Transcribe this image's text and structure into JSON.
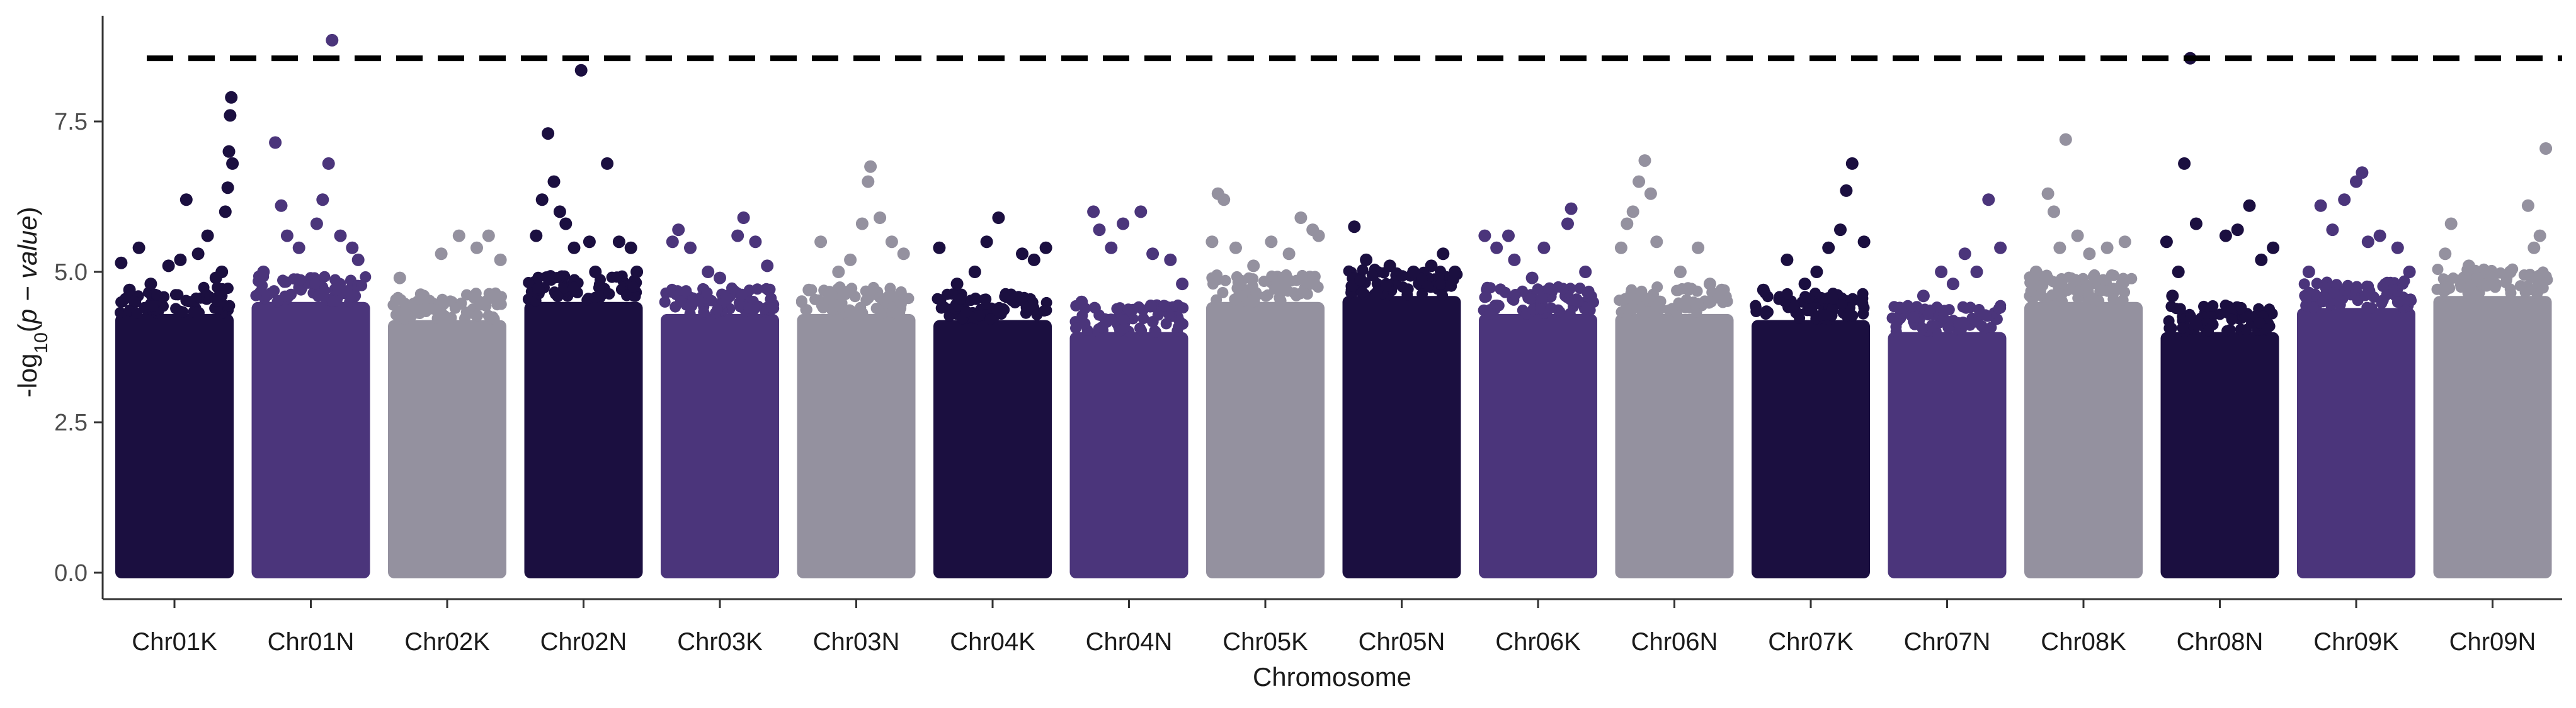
{
  "chart_data": {
    "type": "scatter",
    "subtype": "manhattan",
    "title": "",
    "xlabel": "Chromosome",
    "ylabel": {
      "prefix": "-log",
      "sub": "10",
      "open": "(",
      "italic": "p − value",
      "close": ")"
    },
    "ylim": [
      0,
      9.0
    ],
    "yticks": [
      0.0,
      2.5,
      5.0,
      7.5
    ],
    "ytick_labels": [
      "0.0",
      "2.5",
      "5.0",
      "7.5"
    ],
    "threshold": 8.55,
    "grid": false,
    "legend": "none",
    "palette": [
      "#1b0f40",
      "#4b357b",
      "#94919f"
    ],
    "categories": [
      "Chr01K",
      "Chr01N",
      "Chr02K",
      "Chr02N",
      "Chr03K",
      "Chr03N",
      "Chr04K",
      "Chr04N",
      "Chr05K",
      "Chr05N",
      "Chr06K",
      "Chr06N",
      "Chr07K",
      "Chr07N",
      "Chr08K",
      "Chr08N",
      "Chr09K",
      "Chr09N"
    ],
    "series": [
      {
        "category": "Chr01K",
        "color": "#1b0f40",
        "body_max": 4.3,
        "peaks": [
          [
            0.05,
            5.15
          ],
          [
            0.12,
            4.7
          ],
          [
            0.2,
            5.4
          ],
          [
            0.3,
            4.8
          ],
          [
            0.45,
            5.1
          ],
          [
            0.55,
            5.2
          ],
          [
            0.6,
            6.2
          ],
          [
            0.7,
            5.3
          ],
          [
            0.78,
            5.6
          ],
          [
            0.85,
            4.9
          ],
          [
            0.9,
            5.0
          ],
          [
            0.93,
            6.0
          ],
          [
            0.95,
            6.4
          ],
          [
            0.96,
            7.0
          ],
          [
            0.97,
            7.6
          ],
          [
            0.98,
            7.9
          ],
          [
            0.99,
            6.8
          ]
        ]
      },
      {
        "category": "Chr01N",
        "color": "#4b357b",
        "body_max": 4.5,
        "peaks": [
          [
            0.1,
            5.0
          ],
          [
            0.2,
            7.15
          ],
          [
            0.25,
            6.1
          ],
          [
            0.3,
            5.6
          ],
          [
            0.4,
            5.4
          ],
          [
            0.55,
            5.8
          ],
          [
            0.6,
            6.2
          ],
          [
            0.65,
            6.8
          ],
          [
            0.68,
            8.85
          ],
          [
            0.75,
            5.6
          ],
          [
            0.85,
            5.4
          ],
          [
            0.9,
            5.2
          ]
        ]
      },
      {
        "category": "Chr02K",
        "color": "#94919f",
        "body_max": 4.2,
        "peaks": [
          [
            0.1,
            4.9
          ],
          [
            0.3,
            4.6
          ],
          [
            0.45,
            5.3
          ],
          [
            0.6,
            5.6
          ],
          [
            0.75,
            5.4
          ],
          [
            0.85,
            5.6
          ],
          [
            0.95,
            5.2
          ]
        ]
      },
      {
        "category": "Chr02N",
        "color": "#1b0f40",
        "body_max": 4.5,
        "peaks": [
          [
            0.1,
            5.6
          ],
          [
            0.15,
            6.2
          ],
          [
            0.2,
            7.3
          ],
          [
            0.25,
            6.5
          ],
          [
            0.3,
            6.0
          ],
          [
            0.35,
            5.8
          ],
          [
            0.42,
            5.4
          ],
          [
            0.48,
            8.35
          ],
          [
            0.55,
            5.5
          ],
          [
            0.6,
            5.0
          ],
          [
            0.7,
            6.8
          ],
          [
            0.8,
            5.5
          ],
          [
            0.9,
            5.4
          ],
          [
            0.95,
            5.0
          ]
        ]
      },
      {
        "category": "Chr03K",
        "color": "#4b357b",
        "body_max": 4.3,
        "peaks": [
          [
            0.1,
            5.5
          ],
          [
            0.15,
            5.7
          ],
          [
            0.25,
            5.4
          ],
          [
            0.4,
            5.0
          ],
          [
            0.5,
            4.9
          ],
          [
            0.65,
            5.6
          ],
          [
            0.7,
            5.9
          ],
          [
            0.8,
            5.5
          ],
          [
            0.9,
            5.1
          ]
        ]
      },
      {
        "category": "Chr03N",
        "color": "#94919f",
        "body_max": 4.3,
        "peaks": [
          [
            0.1,
            4.7
          ],
          [
            0.2,
            5.5
          ],
          [
            0.35,
            5.0
          ],
          [
            0.45,
            5.2
          ],
          [
            0.55,
            5.8
          ],
          [
            0.6,
            6.5
          ],
          [
            0.62,
            6.75
          ],
          [
            0.7,
            5.9
          ],
          [
            0.8,
            5.5
          ],
          [
            0.9,
            5.3
          ]
        ]
      },
      {
        "category": "Chr04K",
        "color": "#1b0f40",
        "body_max": 4.2,
        "peaks": [
          [
            0.05,
            5.4
          ],
          [
            0.2,
            4.8
          ],
          [
            0.35,
            5.0
          ],
          [
            0.45,
            5.5
          ],
          [
            0.55,
            5.9
          ],
          [
            0.75,
            5.3
          ],
          [
            0.85,
            5.2
          ],
          [
            0.95,
            5.4
          ]
        ]
      },
      {
        "category": "Chr04N",
        "color": "#4b357b",
        "body_max": 4.0,
        "peaks": [
          [
            0.1,
            4.5
          ],
          [
            0.2,
            6.0
          ],
          [
            0.25,
            5.7
          ],
          [
            0.35,
            5.4
          ],
          [
            0.45,
            5.8
          ],
          [
            0.6,
            6.0
          ],
          [
            0.7,
            5.3
          ],
          [
            0.85,
            5.2
          ],
          [
            0.95,
            4.8
          ]
        ]
      },
      {
        "category": "Chr05K",
        "color": "#94919f",
        "body_max": 4.5,
        "peaks": [
          [
            0.05,
            5.5
          ],
          [
            0.1,
            6.3
          ],
          [
            0.15,
            6.2
          ],
          [
            0.25,
            5.4
          ],
          [
            0.4,
            5.1
          ],
          [
            0.55,
            5.5
          ],
          [
            0.7,
            5.3
          ],
          [
            0.8,
            5.9
          ],
          [
            0.9,
            5.7
          ],
          [
            0.95,
            5.6
          ]
        ]
      },
      {
        "category": "Chr05N",
        "color": "#1b0f40",
        "body_max": 4.6,
        "peaks": [
          [
            0.1,
            5.75
          ],
          [
            0.2,
            5.2
          ],
          [
            0.4,
            5.1
          ],
          [
            0.6,
            5.0
          ],
          [
            0.75,
            5.1
          ],
          [
            0.85,
            5.3
          ],
          [
            0.95,
            5.0
          ]
        ]
      },
      {
        "category": "Chr06K",
        "color": "#4b357b",
        "body_max": 4.3,
        "peaks": [
          [
            0.05,
            5.6
          ],
          [
            0.15,
            5.4
          ],
          [
            0.25,
            5.6
          ],
          [
            0.3,
            5.2
          ],
          [
            0.45,
            4.9
          ],
          [
            0.55,
            5.4
          ],
          [
            0.75,
            5.8
          ],
          [
            0.78,
            6.05
          ],
          [
            0.9,
            5.0
          ]
        ]
      },
      {
        "category": "Chr06N",
        "color": "#94919f",
        "body_max": 4.3,
        "peaks": [
          [
            0.05,
            5.4
          ],
          [
            0.1,
            5.8
          ],
          [
            0.15,
            6.0
          ],
          [
            0.2,
            6.5
          ],
          [
            0.25,
            6.85
          ],
          [
            0.3,
            6.3
          ],
          [
            0.35,
            5.5
          ],
          [
            0.55,
            5.0
          ],
          [
            0.7,
            5.4
          ],
          [
            0.8,
            4.8
          ],
          [
            0.9,
            4.7
          ]
        ]
      },
      {
        "category": "Chr07K",
        "color": "#1b0f40",
        "body_max": 4.2,
        "peaks": [
          [
            0.1,
            4.7
          ],
          [
            0.3,
            5.2
          ],
          [
            0.45,
            4.8
          ],
          [
            0.55,
            5.0
          ],
          [
            0.65,
            5.4
          ],
          [
            0.75,
            5.7
          ],
          [
            0.8,
            6.35
          ],
          [
            0.85,
            6.8
          ],
          [
            0.95,
            5.5
          ]
        ]
      },
      {
        "category": "Chr07N",
        "color": "#4b357b",
        "body_max": 4.0,
        "peaks": [
          [
            0.1,
            4.4
          ],
          [
            0.3,
            4.6
          ],
          [
            0.45,
            5.0
          ],
          [
            0.55,
            4.8
          ],
          [
            0.65,
            5.3
          ],
          [
            0.75,
            5.0
          ],
          [
            0.85,
            6.2
          ],
          [
            0.95,
            5.4
          ]
        ]
      },
      {
        "category": "Chr08K",
        "color": "#94919f",
        "body_max": 4.5,
        "peaks": [
          [
            0.1,
            5.0
          ],
          [
            0.2,
            6.3
          ],
          [
            0.25,
            6.0
          ],
          [
            0.3,
            5.4
          ],
          [
            0.35,
            7.2
          ],
          [
            0.45,
            5.6
          ],
          [
            0.55,
            5.3
          ],
          [
            0.7,
            5.4
          ],
          [
            0.85,
            5.5
          ]
        ]
      },
      {
        "category": "Chr08N",
        "color": "#1b0f40",
        "body_max": 4.0,
        "peaks": [
          [
            0.05,
            5.5
          ],
          [
            0.1,
            4.6
          ],
          [
            0.15,
            5.0
          ],
          [
            0.2,
            6.8
          ],
          [
            0.25,
            8.55
          ],
          [
            0.3,
            5.8
          ],
          [
            0.55,
            5.6
          ],
          [
            0.65,
            5.7
          ],
          [
            0.75,
            6.1
          ],
          [
            0.85,
            5.2
          ],
          [
            0.95,
            5.4
          ]
        ]
      },
      {
        "category": "Chr09K",
        "color": "#4b357b",
        "body_max": 4.4,
        "peaks": [
          [
            0.1,
            5.0
          ],
          [
            0.2,
            6.1
          ],
          [
            0.3,
            5.7
          ],
          [
            0.4,
            6.2
          ],
          [
            0.5,
            6.5
          ],
          [
            0.55,
            6.65
          ],
          [
            0.6,
            5.5
          ],
          [
            0.7,
            5.6
          ],
          [
            0.85,
            5.4
          ],
          [
            0.95,
            5.0
          ]
        ]
      },
      {
        "category": "Chr09N",
        "color": "#94919f",
        "body_max": 4.6,
        "peaks": [
          [
            0.1,
            5.3
          ],
          [
            0.15,
            5.8
          ],
          [
            0.3,
            5.1
          ],
          [
            0.5,
            4.9
          ],
          [
            0.65,
            5.0
          ],
          [
            0.8,
            6.1
          ],
          [
            0.85,
            5.4
          ],
          [
            0.9,
            5.6
          ],
          [
            0.95,
            7.05
          ]
        ]
      }
    ]
  }
}
